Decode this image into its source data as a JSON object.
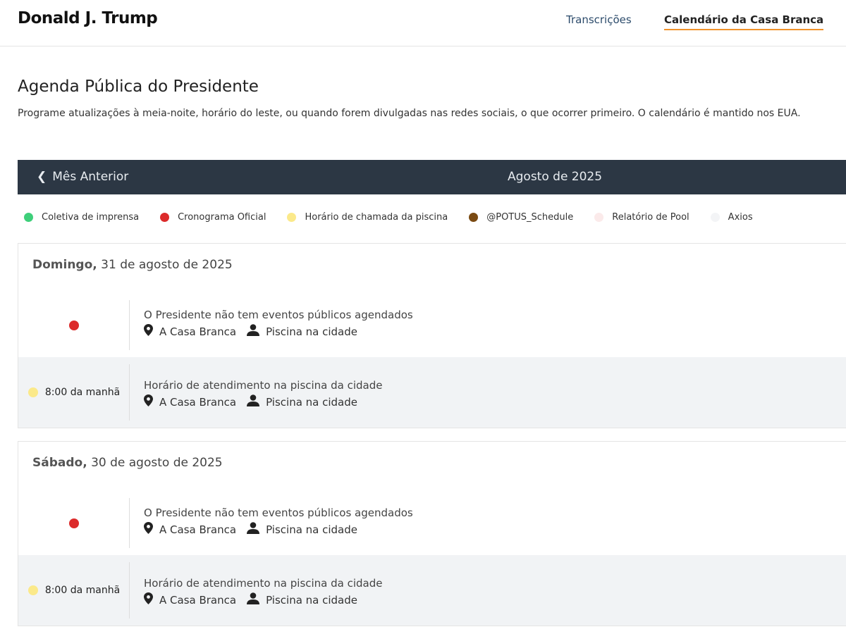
{
  "header": {
    "brand": "Donald J. Trump",
    "nav": [
      "Transcrições",
      "Calendário da Casa Branca"
    ]
  },
  "page": {
    "title": "Agenda Pública do Presidente",
    "subtitle": "Programe atualizações à meia-noite, horário do leste, ou quando forem divulgadas nas redes sociais, o que ocorrer primeiro. O calendário é mantido nos EUA."
  },
  "calendar": {
    "prev_label": "Mês Anterior",
    "month": "Agosto de 2025"
  },
  "legend": [
    {
      "label": "Coletiva de imprensa",
      "color": "#3ecf7a"
    },
    {
      "label": "Cronograma Oficial",
      "color": "#dc2b2b"
    },
    {
      "label": "Horário de chamada da piscina",
      "color": "#fbe98a"
    },
    {
      "label": "@POTUS_Schedule",
      "color": "#7a4a12"
    },
    {
      "label": "Relatório de Pool",
      "color": "#fbeaea"
    },
    {
      "label": "Axios",
      "color": "#f3f4f6"
    }
  ],
  "days": [
    {
      "weekday": "Domingo,",
      "date": "31 de agosto de 2025",
      "events": [
        {
          "time": "",
          "title": "O Presidente não tem eventos públicos agendados",
          "location": "A Casa Branca",
          "coverage": "Piscina na cidade",
          "color": "#dc2b2b"
        },
        {
          "time": "8:00 da manhã",
          "title": "Horário de atendimento na piscina da cidade",
          "location": "A Casa Branca",
          "coverage": "Piscina na cidade",
          "color": "#fbe98a"
        }
      ]
    },
    {
      "weekday": "Sábado,",
      "date": "30 de agosto de 2025",
      "events": [
        {
          "time": "",
          "title": "O Presidente não tem eventos públicos agendados",
          "location": "A Casa Branca",
          "coverage": "Piscina na cidade",
          "color": "#dc2b2b"
        },
        {
          "time": "8:00 da manhã",
          "title": "Horário de atendimento na piscina da cidade",
          "location": "A Casa Branca",
          "coverage": "Piscina na cidade",
          "color": "#fbe98a"
        }
      ]
    }
  ]
}
